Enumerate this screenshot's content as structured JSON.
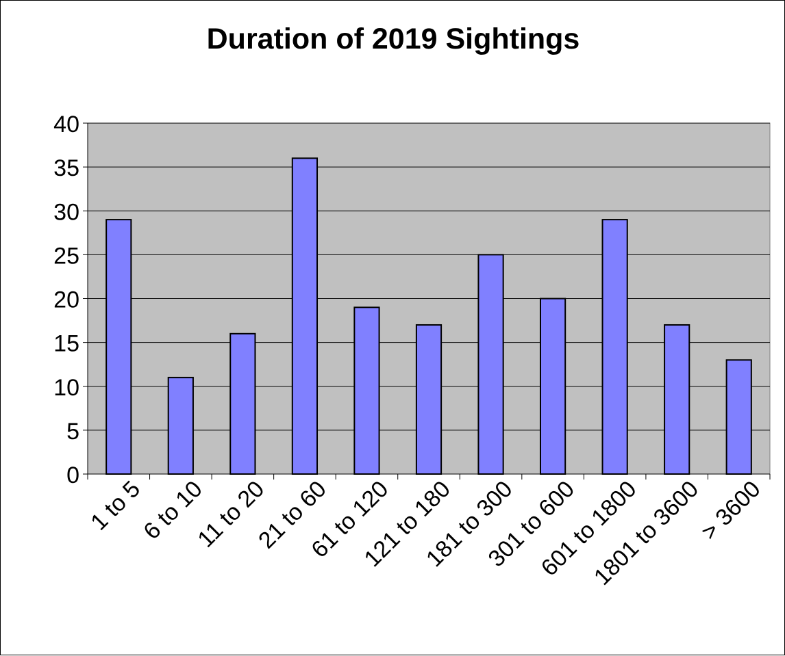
{
  "chart_data": {
    "type": "bar",
    "title": "Duration of 2019 Sightings",
    "xlabel": "",
    "ylabel": "",
    "categories": [
      "1 to 5",
      "6 to 10",
      "11 to 20",
      "21 to 60",
      "61 to 120",
      "121 to 180",
      "181 to 300",
      "301 to 600",
      "601 to 1800",
      "1801 to 3600",
      "> 3600"
    ],
    "values": [
      29,
      11,
      16,
      36,
      19,
      17,
      25,
      20,
      29,
      17,
      13
    ],
    "ylim": [
      0,
      40
    ],
    "yticks": [
      0,
      5,
      10,
      15,
      20,
      25,
      30,
      35,
      40
    ],
    "grid": true,
    "legend": "none",
    "colors": {
      "bar_fill": "#8080ff",
      "bar_stroke": "#000000",
      "plot_background": "#c0c0c0",
      "gridline": "#000000"
    }
  }
}
